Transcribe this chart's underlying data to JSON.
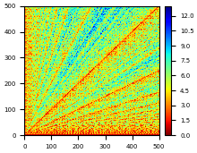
{
  "N": 500,
  "colormap": "jet_r",
  "vmin": 0.0,
  "vmax": 13.0,
  "colorbar_ticks": [
    0.0,
    1.5,
    3.0,
    4.5,
    6.0,
    7.5,
    9.0,
    10.5,
    12.0
  ],
  "xlim": [
    0,
    500
  ],
  "ylim": [
    0,
    500
  ],
  "xlabel_ticks": [
    0,
    100,
    200,
    300,
    400,
    500
  ],
  "ylabel_ticks": [
    0,
    100,
    200,
    300,
    400,
    500
  ],
  "figsize": [
    2.2,
    1.71
  ],
  "dpi": 100
}
